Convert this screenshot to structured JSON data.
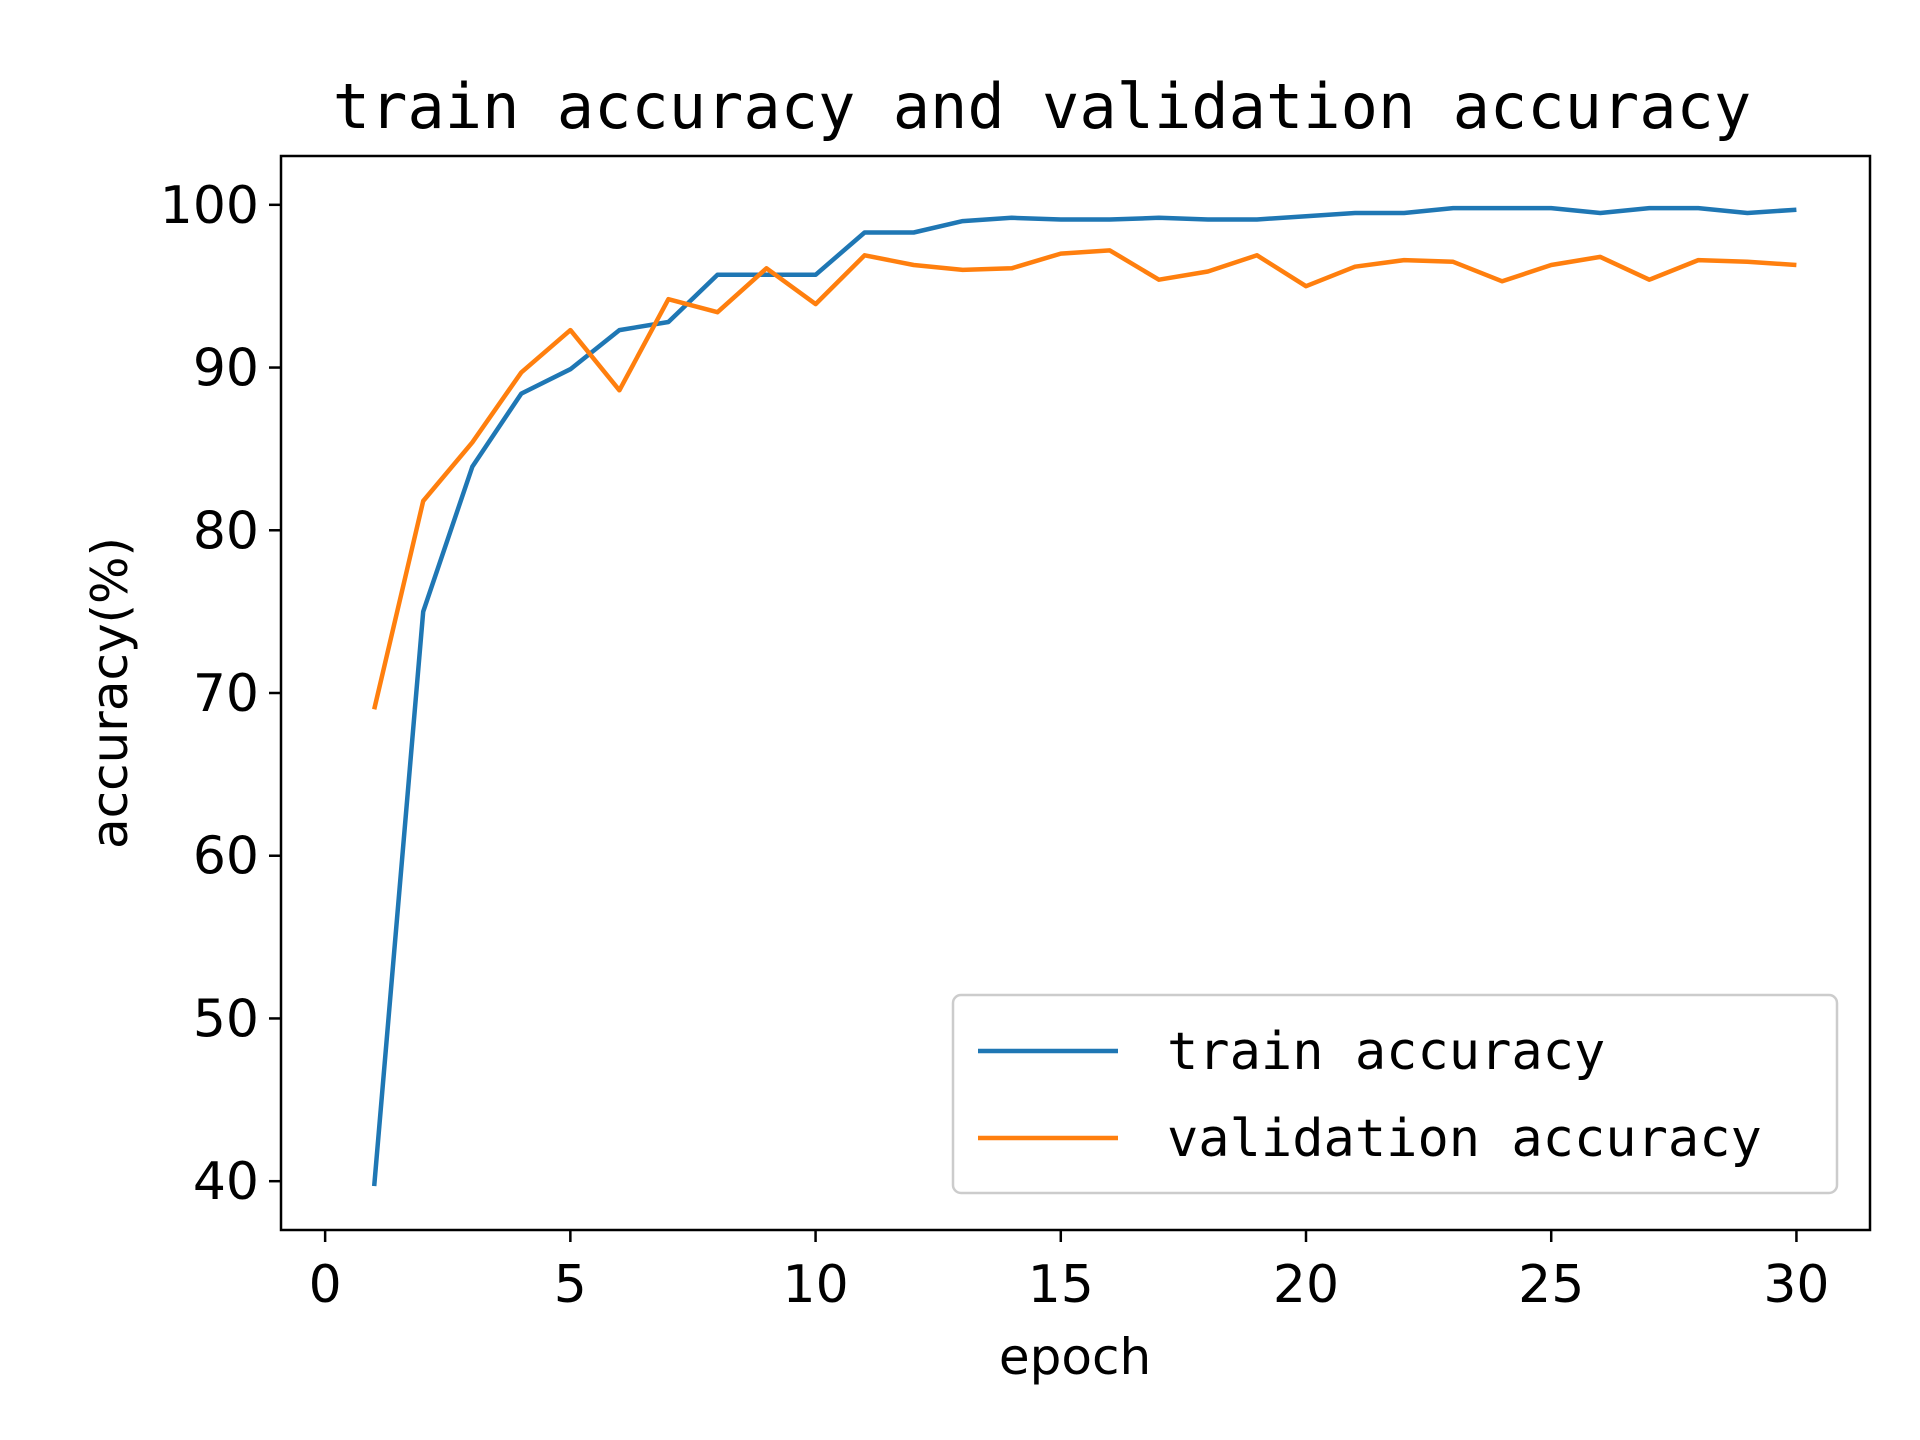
{
  "chart_data": {
    "type": "line",
    "title": "train accuracy and validation accuracy",
    "xlabel": "epoch",
    "ylabel": "accuracy(%)",
    "xlim": [
      -0.9,
      31.5
    ],
    "ylim": [
      37,
      103
    ],
    "xticks": [
      0,
      5,
      10,
      15,
      20,
      25,
      30
    ],
    "yticks": [
      40,
      50,
      60,
      70,
      80,
      90,
      100
    ],
    "grid": false,
    "legend_position": "lower-right",
    "x": [
      1,
      2,
      3,
      4,
      5,
      6,
      7,
      8,
      9,
      10,
      11,
      12,
      13,
      14,
      15,
      16,
      17,
      18,
      19,
      20,
      21,
      22,
      23,
      24,
      25,
      26,
      27,
      28,
      29,
      30
    ],
    "series": [
      {
        "name": "train accuracy",
        "color": "#1f77b4",
        "values": [
          39.7,
          75.0,
          83.9,
          88.4,
          89.9,
          92.3,
          92.8,
          95.7,
          95.7,
          95.7,
          98.3,
          98.3,
          99.0,
          99.2,
          99.1,
          99.1,
          99.2,
          99.1,
          99.1,
          99.3,
          99.5,
          99.5,
          99.8,
          99.8,
          99.8,
          99.5,
          99.8,
          99.8,
          99.5,
          99.7
        ]
      },
      {
        "name": "validation accuracy",
        "color": "#ff7f0e",
        "values": [
          69.0,
          81.8,
          85.4,
          89.7,
          92.3,
          88.6,
          94.2,
          93.4,
          96.1,
          93.9,
          96.9,
          96.3,
          96.0,
          96.1,
          97.0,
          97.2,
          95.4,
          95.9,
          96.9,
          95.0,
          96.2,
          96.6,
          96.5,
          95.3,
          96.3,
          96.8,
          95.4,
          96.6,
          96.5,
          96.3
        ]
      }
    ]
  }
}
